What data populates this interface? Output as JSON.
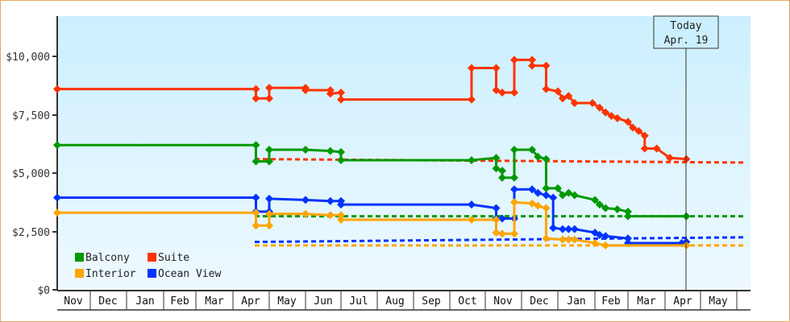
{
  "chart_data": {
    "type": "line",
    "title": "",
    "xlabel": "",
    "ylabel": "",
    "ylim": [
      0,
      12000
    ],
    "y_ticks": [
      "$0",
      "$2,500",
      "$5,000",
      "$7,500",
      "$10,000"
    ],
    "y_tick_values": [
      0,
      2500,
      5000,
      7500,
      10000
    ],
    "x_months": [
      "Nov",
      "Dec",
      "Jan",
      "Feb",
      "Mar",
      "Apr",
      "May",
      "Jun",
      "Jul",
      "Aug",
      "Sep",
      "Oct",
      "Nov",
      "Dec",
      "Jan",
      "Feb",
      "Mar",
      "Apr",
      "May",
      ""
    ],
    "grid": false,
    "legend_position": "lower-left inside plot",
    "today_marker": {
      "line1": "Today",
      "line2": "Apr. 19"
    },
    "series": [
      {
        "name": "Suite",
        "color": "#ff3300",
        "step_points": [
          [
            "Nov 1",
            8600
          ],
          [
            "Apr 20",
            8600
          ],
          [
            "Apr 20",
            8200
          ],
          [
            "May 1",
            8200
          ],
          [
            "May 1",
            8650
          ],
          [
            "Jun 1",
            8650
          ],
          [
            "Jun 1",
            8550
          ],
          [
            "Jun 22",
            8550
          ],
          [
            "Jun 22",
            8400
          ],
          [
            "Jul 1",
            8450
          ],
          [
            "Jul 1",
            8150
          ],
          [
            "Oct 20",
            8150
          ],
          [
            "Oct 20",
            9500
          ],
          [
            "Nov 10",
            9500
          ],
          [
            "Nov 10",
            8550
          ],
          [
            "Nov 15",
            8450
          ],
          [
            "Nov 25",
            8450
          ],
          [
            "Nov 25",
            9850
          ],
          [
            "Dec 10",
            9850
          ],
          [
            "Dec 10",
            9600
          ],
          [
            "Dec 22",
            9600
          ],
          [
            "Dec 22",
            8600
          ],
          [
            "Jan 1",
            8500
          ],
          [
            "Jan 5",
            8200
          ],
          [
            "Jan 10",
            8300
          ],
          [
            "Jan 15",
            8000
          ],
          [
            "Jan 30",
            8000
          ],
          [
            "Feb 5",
            7800
          ],
          [
            "Feb 10",
            7600
          ],
          [
            "Feb 15",
            7450
          ],
          [
            "Feb 20",
            7350
          ],
          [
            "Mar 1",
            7200
          ],
          [
            "Mar 5",
            6950
          ],
          [
            "Mar 10",
            6800
          ],
          [
            "Mar 15",
            6600
          ],
          [
            "Mar 15",
            6050
          ],
          [
            "Mar 25",
            6050
          ],
          [
            "Apr 5",
            5650
          ],
          [
            "Apr 19",
            5600
          ]
        ],
        "forecast": [
          [
            "Apr 19",
            5600
          ],
          [
            "May 31",
            5450
          ]
        ]
      },
      {
        "name": "Balcony",
        "color": "#009900",
        "step_points": [
          [
            "Nov 1",
            6200
          ],
          [
            "Apr 20",
            6200
          ],
          [
            "Apr 20",
            5500
          ],
          [
            "May 1",
            5500
          ],
          [
            "May 1",
            6000
          ],
          [
            "Jun 1",
            6000
          ],
          [
            "Jun 22",
            5950
          ],
          [
            "Jul 1",
            5900
          ],
          [
            "Jul 1",
            5550
          ],
          [
            "Oct 20",
            5550
          ],
          [
            "Nov 10",
            5650
          ],
          [
            "Nov 10",
            5200
          ],
          [
            "Nov 15",
            5100
          ],
          [
            "Nov 15",
            4800
          ],
          [
            "Nov 25",
            4800
          ],
          [
            "Nov 25",
            6000
          ],
          [
            "Dec 10",
            6000
          ],
          [
            "Dec 15",
            5700
          ],
          [
            "Dec 22",
            5600
          ],
          [
            "Dec 22",
            4350
          ],
          [
            "Jan 1",
            4350
          ],
          [
            "Jan 5",
            4050
          ],
          [
            "Jan 10",
            4150
          ],
          [
            "Jan 15",
            4050
          ],
          [
            "Feb 1",
            3850
          ],
          [
            "Feb 5",
            3650
          ],
          [
            "Feb 10",
            3500
          ],
          [
            "Feb 20",
            3450
          ],
          [
            "Mar 1",
            3350
          ],
          [
            "Mar 1",
            3150
          ],
          [
            "Apr 19",
            3150
          ]
        ],
        "forecast": [
          [
            "Apr 19",
            3150
          ],
          [
            "May 31",
            3150
          ]
        ]
      },
      {
        "name": "Ocean View",
        "color": "#0033ff",
        "step_points": [
          [
            "Nov 1",
            3950
          ],
          [
            "Apr 20",
            3950
          ],
          [
            "Apr 20",
            3350
          ],
          [
            "May 1",
            3350
          ],
          [
            "May 1",
            3900
          ],
          [
            "Jun 1",
            3850
          ],
          [
            "Jun 22",
            3800
          ],
          [
            "Jul 1",
            3800
          ],
          [
            "Jul 1",
            3650
          ],
          [
            "Oct 20",
            3650
          ],
          [
            "Nov 10",
            3500
          ],
          [
            "Nov 10",
            3050
          ],
          [
            "Nov 15",
            3050
          ],
          [
            "Nov 25",
            3050
          ],
          [
            "Nov 25",
            4300
          ],
          [
            "Dec 10",
            4300
          ],
          [
            "Dec 15",
            4150
          ],
          [
            "Dec 22",
            4050
          ],
          [
            "Dec 28",
            3950
          ],
          [
            "Dec 28",
            2650
          ],
          [
            "Jan 5",
            2600
          ],
          [
            "Jan 10",
            2600
          ],
          [
            "Jan 15",
            2600
          ],
          [
            "Feb 1",
            2450
          ],
          [
            "Feb 5",
            2350
          ],
          [
            "Feb 10",
            2300
          ],
          [
            "Mar 1",
            2200
          ],
          [
            "Mar 1",
            2000
          ],
          [
            "Apr 15",
            2000
          ],
          [
            "Apr 19",
            2050
          ]
        ],
        "forecast": [
          [
            "Apr 19",
            2050
          ],
          [
            "May 31",
            2250
          ]
        ]
      },
      {
        "name": "Interior",
        "color": "#ffa500",
        "step_points": [
          [
            "Nov 1",
            3300
          ],
          [
            "Apr 20",
            3300
          ],
          [
            "Apr 20",
            2750
          ],
          [
            "May 1",
            2750
          ],
          [
            "May 1",
            3250
          ],
          [
            "Jun 1",
            3250
          ],
          [
            "Jun 22",
            3200
          ],
          [
            "Jul 1",
            3200
          ],
          [
            "Jul 1",
            3000
          ],
          [
            "Oct 20",
            3000
          ],
          [
            "Nov 10",
            3000
          ],
          [
            "Nov 10",
            2450
          ],
          [
            "Nov 15",
            2400
          ],
          [
            "Nov 25",
            2400
          ],
          [
            "Nov 25",
            3750
          ],
          [
            "Dec 10",
            3700
          ],
          [
            "Dec 15",
            3600
          ],
          [
            "Dec 22",
            3500
          ],
          [
            "Dec 22",
            2200
          ],
          [
            "Jan 5",
            2150
          ],
          [
            "Jan 10",
            2150
          ],
          [
            "Jan 15",
            2150
          ],
          [
            "Feb 1",
            2000
          ],
          [
            "Feb 10",
            1900
          ],
          [
            "Apr 19",
            1900
          ]
        ],
        "forecast": [
          [
            "Apr 19",
            1900
          ],
          [
            "May 31",
            1900
          ]
        ]
      }
    ]
  },
  "legend": {
    "items": [
      {
        "label": "Balcony",
        "color": "#009900"
      },
      {
        "label": "Suite",
        "color": "#ff3300"
      },
      {
        "label": "Interior",
        "color": "#ffa500"
      },
      {
        "label": "Ocean View",
        "color": "#0033ff"
      }
    ]
  },
  "axis": {
    "y_labels": [
      "$10,000",
      "$7,500",
      "$5,000",
      "$2,500",
      "$0"
    ],
    "months": [
      "Nov",
      "Dec",
      "Jan",
      "Feb",
      "Mar",
      "Apr",
      "May",
      "Jun",
      "Jul",
      "Aug",
      "Sep",
      "Oct",
      "Nov",
      "Dec",
      "Jan",
      "Feb",
      "Mar",
      "Apr",
      "May"
    ]
  },
  "today": {
    "line1": "Today",
    "line2": "Apr. 19"
  }
}
